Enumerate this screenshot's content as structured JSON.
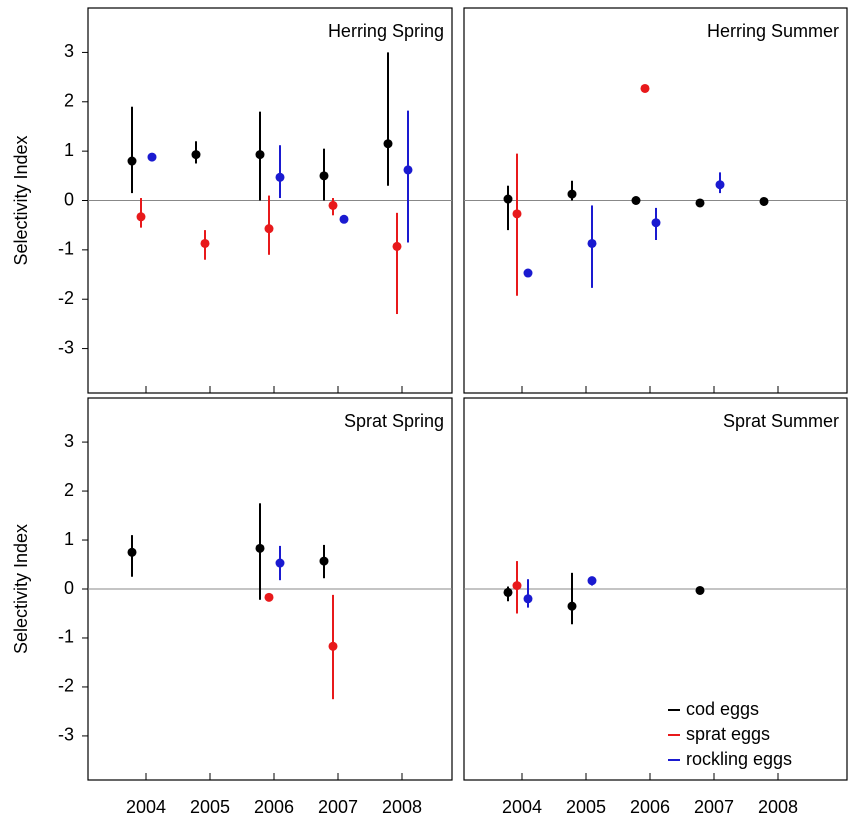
{
  "chart_data": [
    {
      "type": "errorpoint",
      "title": "Herring Spring",
      "ylabel": "Selectivity Index",
      "ylim": [
        -3.9,
        3.9
      ],
      "yticks": [
        -3,
        -2,
        -1,
        0,
        1,
        2,
        3
      ],
      "series": [
        {
          "color": "#000000",
          "values": [
            0.8,
            0.93,
            0.93,
            0.5,
            1.15
          ],
          "lower": [
            0.15,
            0.75,
            0,
            0,
            0.3
          ],
          "upper": [
            1.9,
            1.2,
            1.8,
            1.05,
            3.0
          ]
        },
        {
          "color": "#e8191b",
          "values": [
            -0.33,
            -0.87,
            -0.57,
            -0.1,
            -0.93
          ],
          "lower": [
            -0.55,
            -1.2,
            -1.1,
            -0.3,
            -2.3
          ],
          "upper": [
            0.05,
            -0.6,
            0.1,
            0.05,
            -0.25
          ]
        },
        {
          "color": "#1a1ad0",
          "values": [
            0.88,
            null,
            0.47,
            -0.38,
            0.62
          ],
          "lower": [
            null,
            null,
            0.05,
            null,
            -0.85
          ],
          "upper": [
            null,
            null,
            1.12,
            null,
            1.82
          ]
        }
      ]
    },
    {
      "type": "errorpoint",
      "title": "Herring Summer",
      "ylim": [
        -3.9,
        3.9
      ],
      "series": [
        {
          "color": "#000000",
          "values": [
            0.03,
            0.13,
            0.0,
            -0.05,
            -0.02
          ],
          "lower": [
            -0.6,
            0,
            null,
            null,
            null
          ],
          "upper": [
            0.3,
            0.4,
            null,
            null,
            null
          ]
        },
        {
          "color": "#e8191b",
          "values": [
            -0.27,
            null,
            2.27,
            null,
            null
          ],
          "lower": [
            -1.93,
            null,
            null,
            null,
            null
          ],
          "upper": [
            0.95,
            null,
            null,
            null,
            null
          ]
        },
        {
          "color": "#1a1ad0",
          "values": [
            -1.47,
            -0.87,
            -0.45,
            0.32,
            null
          ],
          "lower": [
            null,
            -1.77,
            -0.8,
            0.15,
            null
          ],
          "upper": [
            null,
            -0.1,
            -0.15,
            0.57,
            null
          ]
        }
      ]
    },
    {
      "type": "errorpoint",
      "title": "Sprat Spring",
      "ylabel": "Selectivity Index",
      "categories": [
        "2004",
        "2005",
        "2006",
        "2007",
        "2008"
      ],
      "ylim": [
        -3.9,
        3.9
      ],
      "yticks": [
        -3,
        -2,
        -1,
        0,
        1,
        2,
        3
      ],
      "series": [
        {
          "color": "#000000",
          "values": [
            0.75,
            null,
            0.83,
            0.57,
            null
          ],
          "lower": [
            0.25,
            null,
            -0.22,
            0.22,
            null
          ],
          "upper": [
            1.1,
            null,
            1.75,
            0.9,
            null
          ]
        },
        {
          "color": "#e8191b",
          "values": [
            null,
            null,
            -0.17,
            -1.17,
            null
          ],
          "lower": [
            null,
            null,
            null,
            -2.25,
            null
          ],
          "upper": [
            null,
            null,
            null,
            -0.12,
            null
          ]
        },
        {
          "color": "#1a1ad0",
          "values": [
            null,
            null,
            0.53,
            null,
            null
          ],
          "lower": [
            null,
            null,
            0.18,
            null,
            null
          ],
          "upper": [
            null,
            null,
            0.88,
            null,
            null
          ]
        }
      ]
    },
    {
      "type": "errorpoint",
      "title": "Sprat Summer",
      "categories": [
        "2004",
        "2005",
        "2006",
        "2007",
        "2008"
      ],
      "ylim": [
        -3.9,
        3.9
      ],
      "series": [
        {
          "name": "cod eggs",
          "color": "#000000",
          "values": [
            -0.07,
            -0.35,
            null,
            -0.03,
            null
          ],
          "lower": [
            -0.25,
            -0.72,
            null,
            null,
            null
          ],
          "upper": [
            0.05,
            0.33,
            null,
            null,
            null
          ]
        },
        {
          "name": "sprat eggs",
          "color": "#e8191b",
          "values": [
            0.07,
            null,
            null,
            null,
            null
          ],
          "lower": [
            -0.5,
            null,
            null,
            null,
            null
          ],
          "upper": [
            0.57,
            null,
            null,
            null,
            null
          ]
        },
        {
          "name": "rockling eggs",
          "color": "#1a1ad0",
          "values": [
            -0.2,
            0.17,
            null,
            null,
            null
          ],
          "lower": [
            -0.38,
            0.07,
            null,
            null,
            null
          ],
          "upper": [
            0.2,
            0.25,
            null,
            null,
            null
          ]
        }
      ]
    }
  ]
}
